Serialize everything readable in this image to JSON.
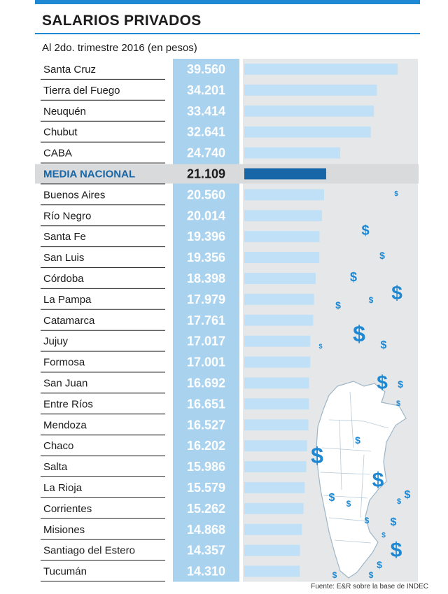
{
  "header": {
    "title": "SALARIOS PRIVADOS",
    "subtitle": "Al 2do. trimestre 2016 (en pesos)"
  },
  "footer": {
    "source": "Fuente: E&R sobre la base de INDEC"
  },
  "colors": {
    "accent": "#1e88d2",
    "value_column": "#a9d2ef",
    "bar": "#bfe0f6",
    "bar_track": "#e6e7e8",
    "highlight_row": "#d9dadb",
    "highlight_bar": "#1766a8",
    "highlight_text": "#1766a8",
    "map": "#ffffff",
    "dollar_sign": "#1e88d2"
  },
  "chart_data": {
    "type": "bar",
    "orientation": "horizontal",
    "title": "SALARIOS PRIVADOS",
    "subtitle": "Al 2do. trimestre 2016 (en pesos)",
    "categories": [
      "Santa Cruz",
      "Tierra del Fuego",
      "Neuquén",
      "Chubut",
      "CABA",
      "MEDIA NACIONAL",
      "Buenos Aires",
      "Río Negro",
      "Santa Fe",
      "San Luis",
      "Córdoba",
      "La Pampa",
      "Catamarca",
      "Jujuy",
      "Formosa",
      "San Juan",
      "Entre Ríos",
      "Mendoza",
      "Chaco",
      "Salta",
      "La Rioja",
      "Corrientes",
      "Misiones",
      "Santiago del Estero",
      "Tucumán"
    ],
    "labels": [
      "39.560",
      "34.201",
      "33.414",
      "32.641",
      "24.740",
      "21.109",
      "20.560",
      "20.014",
      "19.396",
      "19.356",
      "18.398",
      "17.979",
      "17.761",
      "17.017",
      "17.001",
      "16.692",
      "16.651",
      "16.527",
      "16.202",
      "15.986",
      "15.579",
      "15.262",
      "14.868",
      "14.357",
      "14.310"
    ],
    "values": [
      39560,
      34201,
      33414,
      32641,
      24740,
      21109,
      20560,
      20014,
      19396,
      19356,
      18398,
      17979,
      17761,
      17017,
      17001,
      16692,
      16651,
      16527,
      16202,
      15986,
      15579,
      15262,
      14868,
      14357,
      14310
    ],
    "highlight": "MEDIA NACIONAL",
    "xlim": [
      0,
      40800
    ],
    "grid": false,
    "legend": "none",
    "source": "Fuente: E&R sobre la base de INDEC"
  }
}
